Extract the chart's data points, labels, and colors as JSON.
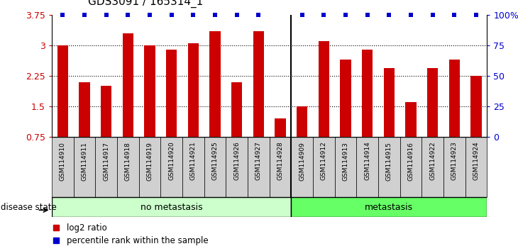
{
  "title": "GDS3091 / 165314_1",
  "samples": [
    "GSM114910",
    "GSM114911",
    "GSM114917",
    "GSM114918",
    "GSM114919",
    "GSM114920",
    "GSM114921",
    "GSM114925",
    "GSM114926",
    "GSM114927",
    "GSM114928",
    "GSM114909",
    "GSM114912",
    "GSM114913",
    "GSM114914",
    "GSM114915",
    "GSM114916",
    "GSM114922",
    "GSM114923",
    "GSM114924"
  ],
  "log2_values": [
    3.0,
    2.1,
    2.0,
    3.3,
    3.0,
    2.9,
    3.05,
    3.35,
    2.1,
    3.35,
    1.2,
    1.5,
    3.1,
    2.65,
    2.9,
    2.45,
    1.6,
    2.45,
    2.65,
    2.25
  ],
  "percentile_dots": [
    true,
    true,
    true,
    true,
    true,
    true,
    true,
    true,
    true,
    true,
    false,
    true,
    true,
    true,
    true,
    true,
    true,
    true,
    true,
    true
  ],
  "no_metastasis_count": 11,
  "metastasis_count": 9,
  "bar_color": "#cc0000",
  "dot_color": "#0000cc",
  "ylim_left": [
    0.75,
    3.75
  ],
  "ylim_right": [
    0,
    100
  ],
  "yticks_left": [
    0.75,
    1.5,
    2.25,
    3.0,
    3.75
  ],
  "ytick_labels_left": [
    "0.75",
    "1.5",
    "2.25",
    "3",
    "3.75"
  ],
  "yticks_right": [
    0,
    25,
    50,
    75,
    100
  ],
  "ytick_labels_right": [
    "0",
    "25",
    "50",
    "75",
    "100%"
  ],
  "grid_values": [
    1.5,
    2.25,
    3.0
  ],
  "no_metastasis_color": "#ccffcc",
  "metastasis_color": "#66ff66",
  "disease_state_label": "disease state",
  "no_metastasis_label": "no metastasis",
  "metastasis_label": "metastasis",
  "legend_log2": "log2 ratio",
  "legend_percentile": "percentile rank within the sample",
  "bar_bottom": 0.75,
  "chart_bg": "#ffffff",
  "tick_box_bg": "#d0d0d0"
}
